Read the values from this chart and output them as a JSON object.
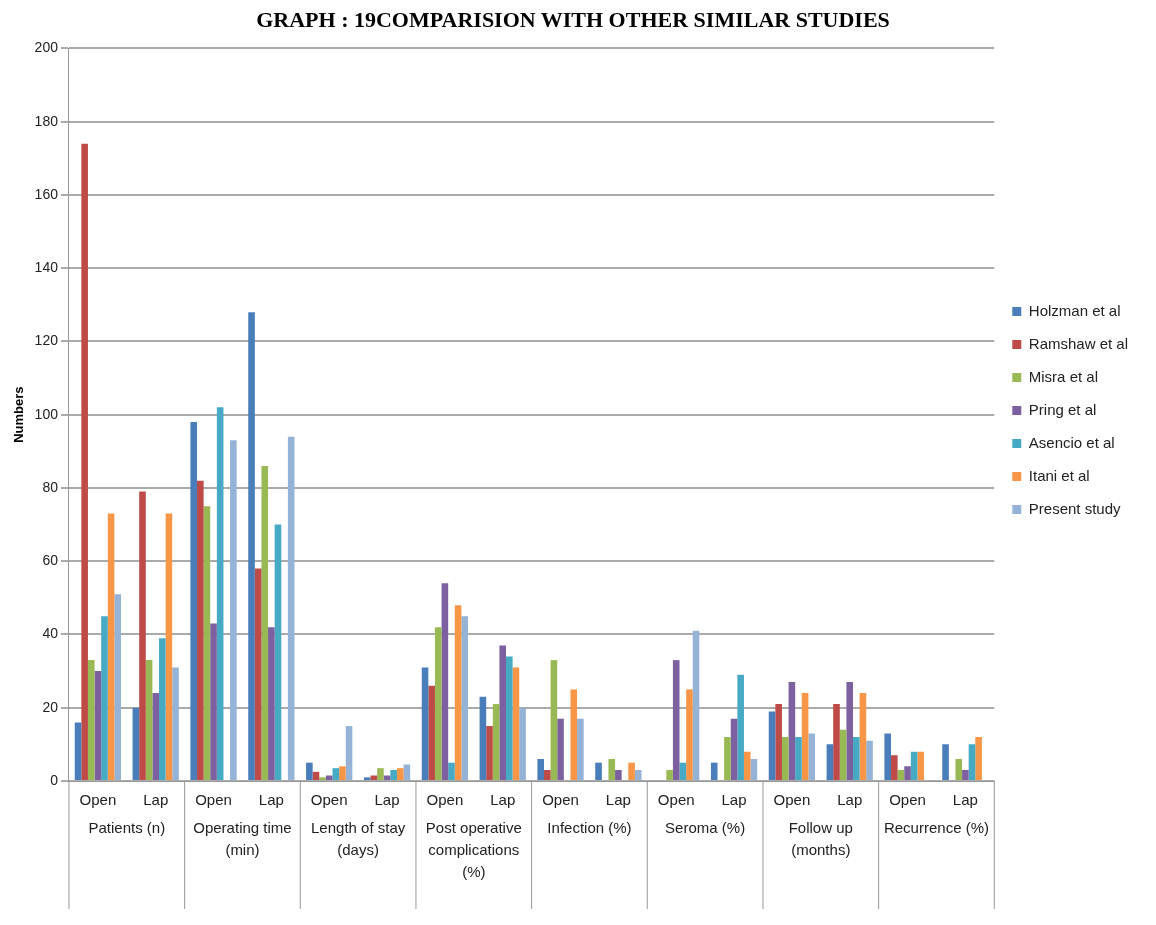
{
  "chart_data": {
    "type": "bar",
    "title": "GRAPH : 19COMPARISION WITH OTHER SIMILAR STUDIES",
    "ylabel": "Numbers",
    "categories": [
      "Open",
      "Lap",
      "Open",
      "Lap",
      "Open",
      "Lap",
      "Open",
      "Lap",
      "Open",
      "Lap",
      "Open",
      "Lap",
      "Open",
      "Lap",
      "Open",
      "Lap"
    ],
    "annotations": [
      "Patients (n)",
      "Operating time (min)",
      "Length of stay (days)",
      "Post operative complications (%)",
      "Infection (%)",
      "Seroma (%)",
      "Follow up (months)",
      "Recurrence (%)"
    ],
    "series": [
      {
        "name": "Holzman et al",
        "color": "#4a7ebb",
        "values": [
          16,
          20,
          98,
          128,
          5,
          1,
          31,
          23,
          6,
          5,
          null,
          5,
          19,
          10,
          13,
          10
        ]
      },
      {
        "name": "Ramshaw et al",
        "color": "#be4b48",
        "values": [
          174,
          79,
          82,
          58,
          2.5,
          1.5,
          26,
          15,
          3,
          null,
          null,
          null,
          21,
          21,
          7,
          null
        ]
      },
      {
        "name": "Misra et al",
        "color": "#98b954",
        "values": [
          33,
          33,
          75,
          86,
          1,
          3.5,
          42,
          21,
          33,
          6,
          3,
          12,
          12,
          14,
          3,
          6
        ]
      },
      {
        "name": "Pring et al",
        "color": "#7d60a0",
        "values": [
          30,
          24,
          43,
          42,
          1.5,
          1.5,
          54,
          37,
          17,
          3,
          33,
          17,
          27,
          27,
          4,
          3
        ]
      },
      {
        "name": "Asencio et al",
        "color": "#46aac5",
        "values": [
          45,
          39,
          102,
          70,
          3.5,
          3,
          5,
          34,
          null,
          null,
          5,
          29,
          12,
          12,
          8,
          10
        ]
      },
      {
        "name": "Itani et al",
        "color": "#f79646",
        "values": [
          73,
          73,
          null,
          null,
          4,
          3.5,
          48,
          31,
          25,
          5,
          25,
          8,
          24,
          24,
          8,
          12
        ]
      },
      {
        "name": "Present study",
        "color": "#95b3d7",
        "values": [
          51,
          31,
          93,
          94,
          15,
          4.5,
          45,
          20,
          17,
          3,
          41,
          6,
          13,
          11,
          null,
          null
        ]
      }
    ],
    "ylim": [
      0,
      200
    ],
    "yticks": [
      0,
      20,
      40,
      60,
      80,
      100,
      120,
      140,
      160,
      180,
      200
    ],
    "grid": "y",
    "legend": "right"
  }
}
